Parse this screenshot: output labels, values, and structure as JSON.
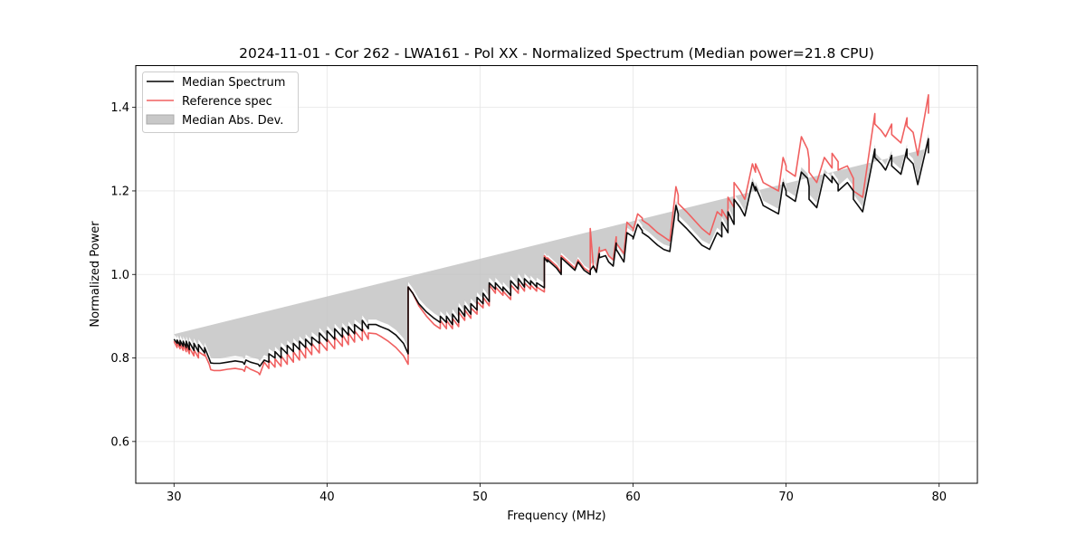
{
  "chart_data": {
    "type": "line",
    "title": "2024-11-01 - Cor 262 - LWA161 - Pol XX - Normalized Spectrum (Median power=21.8 CPU)",
    "xlabel": "Frequency (MHz)",
    "ylabel": "Normalized Power",
    "xlim": [
      27.5,
      82.5
    ],
    "ylim": [
      0.5,
      1.5
    ],
    "xticks": [
      30,
      40,
      50,
      60,
      70,
      80
    ],
    "xtick_labels": [
      "30",
      "40",
      "50",
      "60",
      "70",
      "80"
    ],
    "yticks": [
      0.6,
      0.8,
      1.0,
      1.2,
      1.4
    ],
    "ytick_labels": [
      "0.6",
      "0.8",
      "1.0",
      "1.2",
      "1.4"
    ],
    "grid": true,
    "legend_position": "top-left",
    "legend": [
      "Median Spectrum",
      "Reference spec",
      "Median Abs. Dev."
    ],
    "colors": {
      "median": "#000000",
      "reference": "#f06060",
      "mad_fill": "#c0c0c0"
    },
    "mad_halfwidth": 0.012,
    "x": [
      30.0,
      30.2,
      30.2,
      30.4,
      30.4,
      30.6,
      30.6,
      30.8,
      30.8,
      31.0,
      31.0,
      31.3,
      31.3,
      31.6,
      31.6,
      32.0,
      32.0,
      32.3,
      32.4,
      32.6,
      33.0,
      33.5,
      34.0,
      34.5,
      34.6,
      34.7,
      35.0,
      35.2,
      35.5,
      35.6,
      35.9,
      36.2,
      36.2,
      36.6,
      36.6,
      37.0,
      37.0,
      37.4,
      37.4,
      37.8,
      37.8,
      38.2,
      38.2,
      38.6,
      38.6,
      39.0,
      39.0,
      39.5,
      39.5,
      40.0,
      40.0,
      40.5,
      40.5,
      41.0,
      41.0,
      41.4,
      41.4,
      41.8,
      41.8,
      42.3,
      42.3,
      42.7,
      42.7,
      43.2,
      43.5,
      44.0,
      44.5,
      45.0,
      45.3,
      45.3,
      45.6,
      46.0,
      46.5,
      47.0,
      47.2,
      47.4,
      47.4,
      47.8,
      47.8,
      48.2,
      48.2,
      48.6,
      48.6,
      49.0,
      49.0,
      49.4,
      49.4,
      49.8,
      49.8,
      50.2,
      50.2,
      50.6,
      50.6,
      51.0,
      51.0,
      51.5,
      51.5,
      52.0,
      52.0,
      52.5,
      52.5,
      52.9,
      52.9,
      53.3,
      53.3,
      53.7,
      53.7,
      54.2,
      54.2,
      54.4,
      54.4,
      55.0,
      55.3,
      55.3,
      55.9,
      56.2,
      56.4,
      56.8,
      57.2,
      57.2,
      57.4,
      57.6,
      57.8,
      57.8,
      58.2,
      58.4,
      58.7,
      58.9,
      58.9,
      59.4,
      59.6,
      60.0,
      60.0,
      60.3,
      60.6,
      60.6,
      61.0,
      61.3,
      61.6,
      62.0,
      62.4,
      62.8,
      62.95,
      62.95,
      63.5,
      64.0,
      64.5,
      65.0,
      65.5,
      65.8,
      65.8,
      66.2,
      66.2,
      66.6,
      66.6,
      67.0,
      67.3,
      67.8,
      68.0,
      68.0,
      68.3,
      68.5,
      69.0,
      69.5,
      69.8,
      70.0,
      70.0,
      70.6,
      71.0,
      71.4,
      71.5,
      71.5,
      72.0,
      72.5,
      73.0,
      73.0,
      73.4,
      73.4,
      74.0,
      74.4,
      74.4,
      75.0,
      75.8,
      75.8,
      76.2,
      76.5,
      76.9,
      76.9,
      77.5,
      77.9,
      77.9,
      78.3,
      78.6,
      79.3,
      79.3,
      80.0
    ],
    "series": [
      {
        "name": "Median Spectrum",
        "values": [
          0.845,
          0.835,
          0.843,
          0.83,
          0.842,
          0.828,
          0.84,
          0.825,
          0.84,
          0.82,
          0.838,
          0.818,
          0.835,
          0.815,
          0.832,
          0.812,
          0.825,
          0.798,
          0.788,
          0.787,
          0.787,
          0.79,
          0.793,
          0.79,
          0.785,
          0.795,
          0.79,
          0.788,
          0.785,
          0.78,
          0.795,
          0.79,
          0.81,
          0.8,
          0.815,
          0.8,
          0.825,
          0.81,
          0.83,
          0.815,
          0.835,
          0.82,
          0.84,
          0.825,
          0.845,
          0.83,
          0.85,
          0.835,
          0.86,
          0.84,
          0.865,
          0.845,
          0.87,
          0.85,
          0.872,
          0.855,
          0.875,
          0.858,
          0.88,
          0.865,
          0.89,
          0.87,
          0.88,
          0.88,
          0.875,
          0.868,
          0.855,
          0.835,
          0.81,
          0.97,
          0.955,
          0.93,
          0.91,
          0.895,
          0.89,
          0.885,
          0.9,
          0.885,
          0.9,
          0.88,
          0.905,
          0.885,
          0.92,
          0.9,
          0.925,
          0.905,
          0.93,
          0.915,
          0.945,
          0.93,
          0.955,
          0.935,
          0.98,
          0.965,
          0.98,
          0.96,
          0.97,
          0.95,
          0.985,
          0.965,
          0.99,
          0.97,
          0.99,
          0.975,
          0.985,
          0.97,
          0.98,
          0.968,
          1.04,
          1.03,
          1.035,
          1.015,
          1.0,
          1.04,
          1.02,
          1.01,
          1.03,
          1.01,
          1.0,
          1.01,
          1.02,
          1.005,
          1.05,
          1.04,
          1.045,
          1.03,
          1.02,
          1.075,
          1.06,
          1.03,
          1.1,
          1.09,
          1.085,
          1.12,
          1.105,
          1.1,
          1.09,
          1.08,
          1.07,
          1.06,
          1.055,
          1.165,
          1.145,
          1.13,
          1.11,
          1.09,
          1.07,
          1.06,
          1.1,
          1.09,
          1.125,
          1.1,
          1.15,
          1.12,
          1.18,
          1.16,
          1.14,
          1.22,
          1.2,
          1.21,
          1.185,
          1.165,
          1.155,
          1.145,
          1.22,
          1.2,
          1.19,
          1.175,
          1.245,
          1.23,
          1.21,
          1.18,
          1.16,
          1.24,
          1.22,
          1.235,
          1.215,
          1.2,
          1.22,
          1.2,
          1.18,
          1.15,
          1.3,
          1.28,
          1.265,
          1.25,
          1.285,
          1.26,
          1.24,
          1.3,
          1.28,
          1.265,
          1.215,
          1.325,
          1.29
        ]
      },
      {
        "name": "Reference spec",
        "values": [
          0.84,
          0.825,
          0.838,
          0.822,
          0.835,
          0.818,
          0.832,
          0.815,
          0.83,
          0.81,
          0.825,
          0.805,
          0.82,
          0.8,
          0.815,
          0.805,
          0.81,
          0.785,
          0.772,
          0.77,
          0.77,
          0.773,
          0.775,
          0.772,
          0.768,
          0.78,
          0.773,
          0.77,
          0.765,
          0.76,
          0.79,
          0.775,
          0.795,
          0.778,
          0.798,
          0.78,
          0.805,
          0.785,
          0.81,
          0.79,
          0.815,
          0.795,
          0.822,
          0.8,
          0.828,
          0.808,
          0.835,
          0.812,
          0.84,
          0.818,
          0.845,
          0.822,
          0.85,
          0.828,
          0.856,
          0.832,
          0.86,
          0.838,
          0.865,
          0.842,
          0.87,
          0.845,
          0.86,
          0.858,
          0.852,
          0.84,
          0.825,
          0.805,
          0.785,
          0.97,
          0.955,
          0.925,
          0.9,
          0.88,
          0.875,
          0.87,
          0.89,
          0.87,
          0.89,
          0.87,
          0.895,
          0.875,
          0.91,
          0.89,
          0.915,
          0.895,
          0.92,
          0.905,
          0.935,
          0.92,
          0.945,
          0.925,
          0.975,
          0.955,
          0.97,
          0.95,
          0.96,
          0.94,
          0.975,
          0.955,
          0.98,
          0.96,
          0.98,
          0.965,
          0.975,
          0.96,
          0.97,
          0.958,
          1.045,
          1.035,
          1.04,
          1.02,
          1.005,
          1.045,
          1.025,
          1.015,
          1.035,
          1.015,
          1.005,
          1.11,
          1.02,
          1.01,
          1.065,
          1.055,
          1.06,
          1.045,
          1.035,
          1.09,
          1.075,
          1.05,
          1.125,
          1.11,
          1.105,
          1.145,
          1.135,
          1.13,
          1.12,
          1.11,
          1.1,
          1.09,
          1.08,
          1.21,
          1.19,
          1.17,
          1.15,
          1.13,
          1.11,
          1.095,
          1.15,
          1.14,
          1.155,
          1.13,
          1.185,
          1.16,
          1.22,
          1.2,
          1.18,
          1.265,
          1.245,
          1.265,
          1.24,
          1.22,
          1.21,
          1.2,
          1.28,
          1.26,
          1.25,
          1.235,
          1.33,
          1.3,
          1.275,
          1.245,
          1.22,
          1.28,
          1.255,
          1.29,
          1.27,
          1.25,
          1.26,
          1.23,
          1.2,
          1.185,
          1.385,
          1.36,
          1.345,
          1.33,
          1.36,
          1.335,
          1.315,
          1.375,
          1.355,
          1.34,
          1.285,
          1.43,
          1.385
        ]
      }
    ]
  }
}
